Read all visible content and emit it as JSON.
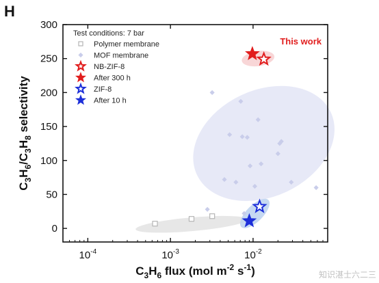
{
  "panel_label": "H",
  "watermark": "知识湛士六二三",
  "colors": {
    "red": "#e11d1d",
    "blue": "#1d2fd9",
    "polymer": "#b5b5b5",
    "mof": "#c9cdea",
    "mof_region": "#e4e7f6",
    "polymer_region": "#e6e6e6",
    "red_region": "#f7cfd0",
    "blue_region": "#bcd2f0"
  },
  "chart_data": {
    "type": "scatter",
    "title": "",
    "xlabel": "C3H6 flux (mol m-2 s-1)",
    "ylabel": "C3H6/C3H8 selectivity",
    "xscale": "log",
    "xlim": [
      5e-05,
      0.08
    ],
    "ylim": [
      -20,
      300
    ],
    "xticks": [
      {
        "value": 0.0001,
        "label": "10-4"
      },
      {
        "value": 0.001,
        "label": "10-3"
      },
      {
        "value": 0.01,
        "label": "10-2"
      }
    ],
    "yticks": [
      0,
      50,
      100,
      150,
      200,
      250,
      300
    ],
    "grid": false,
    "legend_position": "top-left",
    "legend_title": "Test conditions: 7 bar",
    "annotation": "This work",
    "series": [
      {
        "name": "Polymer membrane",
        "marker": "square",
        "color": "#b5b5b5",
        "x": [
          0.00065,
          0.0018,
          0.0032
        ],
        "y": [
          7,
          14,
          18
        ]
      },
      {
        "name": "MOF membrane",
        "marker": "diamond",
        "color": "#c9cdea",
        "x": [
          0.0028,
          0.0032,
          0.0045,
          0.0052,
          0.0062,
          0.0071,
          0.0074,
          0.0078,
          0.0085,
          0.0092,
          0.0105,
          0.0115,
          0.0125,
          0.02,
          0.021,
          0.022,
          0.029,
          0.058
        ],
        "y": [
          28,
          200,
          72,
          138,
          68,
          187,
          135,
          22,
          134,
          92,
          62,
          160,
          95,
          110,
          125,
          128,
          68,
          60
        ]
      },
      {
        "name": "NB-ZIF-8",
        "marker": "star-open",
        "color": "#e11d1d",
        "x": [
          0.0135
        ],
        "y": [
          249
        ]
      },
      {
        "name": "After 300 h",
        "marker": "star-filled",
        "color": "#e11d1d",
        "x": [
          0.0098
        ],
        "y": [
          257
        ]
      },
      {
        "name": "ZIF-8",
        "marker": "star-open",
        "color": "#1d2fd9",
        "x": [
          0.012
        ],
        "y": [
          32
        ]
      },
      {
        "name": "After 10 h",
        "marker": "star-filled",
        "color": "#1d2fd9",
        "x": [
          0.009
        ],
        "y": [
          11
        ]
      }
    ]
  }
}
